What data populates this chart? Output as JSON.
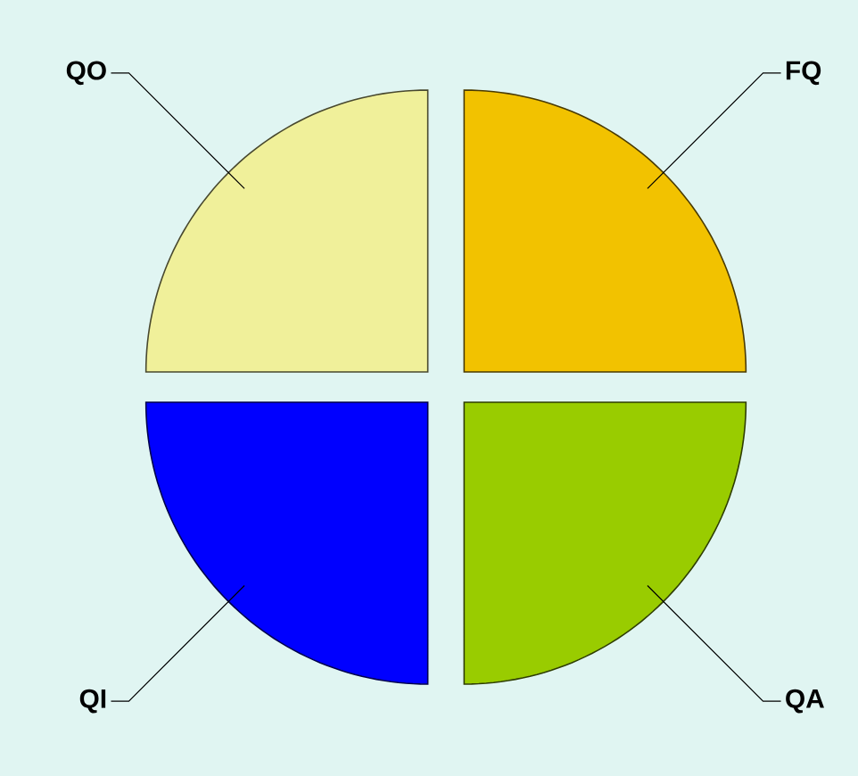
{
  "chart_data": {
    "type": "pie",
    "categories": [
      "FQ",
      "QA",
      "QI",
      "QO"
    ],
    "values": [
      25,
      25,
      25,
      25
    ],
    "colors": [
      "#f2c200",
      "#99cc00",
      "#0000ff",
      "#f0f09a"
    ]
  }
}
